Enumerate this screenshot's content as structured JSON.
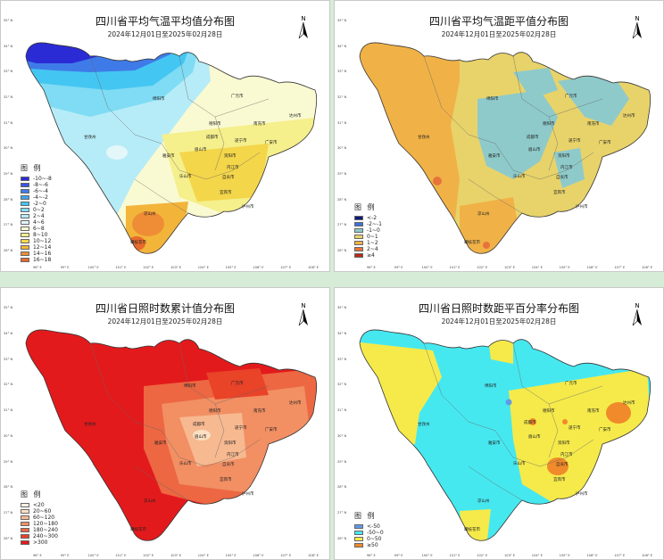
{
  "panels": [
    {
      "title": "四川省平均气温平均值分布图",
      "subtitle": "2024年12月01日至2025年02月28日",
      "legend_title": "图 例",
      "legend": [
        {
          "label": "-10~-8",
          "color": "#2b2bd6"
        },
        {
          "label": "-8~-6",
          "color": "#3a55e0"
        },
        {
          "label": "-6~-4",
          "color": "#3f7be8"
        },
        {
          "label": "-4~-2",
          "color": "#41a3ee"
        },
        {
          "label": "-2~0",
          "color": "#44c6f2"
        },
        {
          "label": "0~2",
          "color": "#7fdcf4"
        },
        {
          "label": "2~4",
          "color": "#b6ecf7"
        },
        {
          "label": "4~6",
          "color": "#e3f7f9"
        },
        {
          "label": "6~8",
          "color": "#fafad2"
        },
        {
          "label": "8~10",
          "color": "#f5ef8c"
        },
        {
          "label": "10~12",
          "color": "#f4d64a"
        },
        {
          "label": "12~14",
          "color": "#f3b43a"
        },
        {
          "label": "14~16",
          "color": "#ee8d35"
        },
        {
          "label": "16~18",
          "color": "#e86a2e"
        }
      ]
    },
    {
      "title": "四川省平均气温距平值分布图",
      "subtitle": "2024年12月01日至2025年02月28日",
      "legend_title": "图 例",
      "legend": [
        {
          "label": "<-2",
          "color": "#101a7a"
        },
        {
          "label": "-2~-1",
          "color": "#3f6fd6"
        },
        {
          "label": "-1~0",
          "color": "#8fcaca"
        },
        {
          "label": "0~1",
          "color": "#e8d36a"
        },
        {
          "label": "1~2",
          "color": "#f0b247"
        },
        {
          "label": "2~4",
          "color": "#e8733a"
        },
        {
          "label": "≥4",
          "color": "#b42a1c"
        }
      ]
    },
    {
      "title": "四川省日照时数累计值分布图",
      "subtitle": "2024年12月01日至2025年02月28日",
      "legend_title": "图 例",
      "legend": [
        {
          "label": "<20",
          "color": "#fdf3e3"
        },
        {
          "label": "20~60",
          "color": "#fbe0c3"
        },
        {
          "label": "60~120",
          "color": "#f7b990"
        },
        {
          "label": "120~180",
          "color": "#f28f63"
        },
        {
          "label": "180~240",
          "color": "#ec6742"
        },
        {
          "label": "240~300",
          "color": "#e94328"
        },
        {
          "label": ">300",
          "color": "#e31a1c"
        }
      ]
    },
    {
      "title": "四川省日照时数距平百分率分布图",
      "subtitle": "2024年12月01日至2025年02月28日",
      "legend_title": "图 例",
      "legend": [
        {
          "label": "<-50",
          "color": "#5f9be8"
        },
        {
          "label": "-50~0",
          "color": "#46e8f0"
        },
        {
          "label": "0~50",
          "color": "#f5ea4a"
        },
        {
          "label": "≥50",
          "color": "#f08a2a"
        }
      ]
    }
  ],
  "north_label": "N",
  "lat_labels": [
    "35° N",
    "34° N",
    "33° N",
    "32° N",
    "31° N",
    "30° N",
    "29° N",
    "28° N",
    "27° N",
    "26° N"
  ],
  "lon_labels": [
    "98° E",
    "99° E",
    "100° E",
    "101° E",
    "102° E",
    "103° E",
    "104° E",
    "105° E",
    "106° E",
    "107° E",
    "108° E"
  ],
  "cities": [
    "广元市",
    "绵阳市",
    "巴中市",
    "达州市",
    "南充市",
    "德阳市",
    "遂宁市",
    "广安市",
    "成都市",
    "资阳市",
    "内江市",
    "眉山市",
    "自贡市",
    "乐山市",
    "宜宾市",
    "泸州市",
    "雅安市",
    "甘孜州",
    "阿坝州",
    "凉山州",
    "攀枝花市"
  ]
}
